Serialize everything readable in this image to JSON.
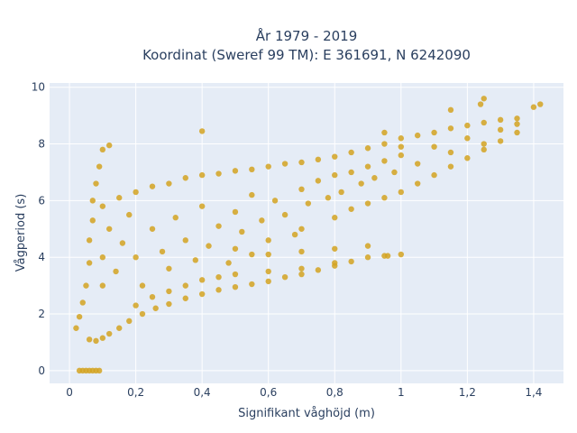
{
  "chart_data": {
    "type": "scatter",
    "title": [
      "År 1979 - 2019",
      "Koordinat (Sweref 99 TM): E 361691, N 6242090"
    ],
    "xlabel": "Signifikant våghöjd (m)",
    "ylabel": "Vågperiod (s)",
    "xlim": [
      -0.06,
      1.49
    ],
    "ylim": [
      -0.45,
      10.15
    ],
    "xticks": [
      0,
      0.2,
      0.4,
      0.6,
      0.8,
      1,
      1.2,
      1.4
    ],
    "xtick_labels": [
      "0",
      "0,2",
      "0,4",
      "0,6",
      "0,8",
      "1",
      "1,2",
      "1,4"
    ],
    "yticks": [
      0,
      2,
      4,
      6,
      8,
      10
    ],
    "ytick_labels": [
      "0",
      "2",
      "4",
      "6",
      "8",
      "10"
    ],
    "grid": true,
    "marker_color": "#d4a321",
    "plot_background": "#e5ecf6",
    "series": [
      {
        "points": [
          [
            0.02,
            1.5
          ],
          [
            0.03,
            1.9
          ],
          [
            0.04,
            2.4
          ],
          [
            0.05,
            3.0
          ],
          [
            0.06,
            3.8
          ],
          [
            0.06,
            4.6
          ],
          [
            0.07,
            5.3
          ],
          [
            0.07,
            6.0
          ],
          [
            0.08,
            6.6
          ],
          [
            0.09,
            7.2
          ],
          [
            0.06,
            1.1
          ],
          [
            0.08,
            1.05
          ],
          [
            0.1,
            1.15
          ],
          [
            0.12,
            1.3
          ],
          [
            0.15,
            1.5
          ],
          [
            0.18,
            1.75
          ],
          [
            0.22,
            2.0
          ],
          [
            0.26,
            2.2
          ],
          [
            0.3,
            2.35
          ],
          [
            0.35,
            2.55
          ],
          [
            0.4,
            2.7
          ],
          [
            0.45,
            2.85
          ],
          [
            0.5,
            2.95
          ],
          [
            0.55,
            3.05
          ],
          [
            0.6,
            3.15
          ],
          [
            0.65,
            3.3
          ],
          [
            0.7,
            3.4
          ],
          [
            0.75,
            3.55
          ],
          [
            0.8,
            3.7
          ],
          [
            0.85,
            3.85
          ],
          [
            0.9,
            4.0
          ],
          [
            0.95,
            4.05
          ],
          [
            1.0,
            4.1
          ],
          [
            0.1,
            5.8
          ],
          [
            0.15,
            6.1
          ],
          [
            0.2,
            6.3
          ],
          [
            0.25,
            6.5
          ],
          [
            0.3,
            6.6
          ],
          [
            0.35,
            6.8
          ],
          [
            0.4,
            6.9
          ],
          [
            0.45,
            6.95
          ],
          [
            0.5,
            7.05
          ],
          [
            0.55,
            7.1
          ],
          [
            0.6,
            7.2
          ],
          [
            0.65,
            7.3
          ],
          [
            0.7,
            7.35
          ],
          [
            0.75,
            7.45
          ],
          [
            0.8,
            7.55
          ],
          [
            0.85,
            7.7
          ],
          [
            0.9,
            7.85
          ],
          [
            0.95,
            8.0
          ],
          [
            1.0,
            8.2
          ],
          [
            1.05,
            8.3
          ],
          [
            1.1,
            8.4
          ],
          [
            1.15,
            8.55
          ],
          [
            1.2,
            8.65
          ],
          [
            1.25,
            8.75
          ],
          [
            1.3,
            8.85
          ],
          [
            1.35,
            8.9
          ],
          [
            1.4,
            9.3
          ],
          [
            1.42,
            9.4
          ],
          [
            1.25,
            9.6
          ],
          [
            1.24,
            9.4
          ],
          [
            1.15,
            9.2
          ],
          [
            0.12,
            7.95
          ],
          [
            0.1,
            7.8
          ],
          [
            0.4,
            8.45
          ],
          [
            0.95,
            8.4
          ],
          [
            1.0,
            7.9
          ],
          [
            0.5,
            4.3
          ],
          [
            0.6,
            4.6
          ],
          [
            0.7,
            5.0
          ],
          [
            0.8,
            5.4
          ],
          [
            0.85,
            5.7
          ],
          [
            0.9,
            5.9
          ],
          [
            0.95,
            6.1
          ],
          [
            1.0,
            6.3
          ],
          [
            1.05,
            6.6
          ],
          [
            1.1,
            6.9
          ],
          [
            1.15,
            7.2
          ],
          [
            1.2,
            7.5
          ],
          [
            1.25,
            7.8
          ],
          [
            1.3,
            8.1
          ],
          [
            1.35,
            8.4
          ],
          [
            0.55,
            4.1
          ],
          [
            0.7,
            4.2
          ],
          [
            0.8,
            4.3
          ],
          [
            0.9,
            4.4
          ],
          [
            0.96,
            4.05
          ],
          [
            0.03,
            0.0
          ],
          [
            0.04,
            0.0
          ],
          [
            0.05,
            0.0
          ],
          [
            0.06,
            0.0
          ],
          [
            0.07,
            0.0
          ],
          [
            0.08,
            0.0
          ],
          [
            0.09,
            0.0
          ],
          [
            0.1,
            3.0
          ],
          [
            0.1,
            4.0
          ],
          [
            0.12,
            5.0
          ],
          [
            0.14,
            3.5
          ],
          [
            0.16,
            4.5
          ],
          [
            0.18,
            5.5
          ],
          [
            0.2,
            4.0
          ],
          [
            0.22,
            3.0
          ],
          [
            0.25,
            5.0
          ],
          [
            0.28,
            4.2
          ],
          [
            0.3,
            3.6
          ],
          [
            0.32,
            5.4
          ],
          [
            0.35,
            4.6
          ],
          [
            0.38,
            3.9
          ],
          [
            0.4,
            5.8
          ],
          [
            0.42,
            4.4
          ],
          [
            0.45,
            5.1
          ],
          [
            0.48,
            3.8
          ],
          [
            0.5,
            5.6
          ],
          [
            0.52,
            4.9
          ],
          [
            0.55,
            6.2
          ],
          [
            0.58,
            5.3
          ],
          [
            0.6,
            4.1
          ],
          [
            0.62,
            6.0
          ],
          [
            0.65,
            5.5
          ],
          [
            0.68,
            4.8
          ],
          [
            0.7,
            6.4
          ],
          [
            0.72,
            5.9
          ],
          [
            0.75,
            6.7
          ],
          [
            0.78,
            6.1
          ],
          [
            0.8,
            6.9
          ],
          [
            0.82,
            6.3
          ],
          [
            0.85,
            7.0
          ],
          [
            0.88,
            6.6
          ],
          [
            0.9,
            7.2
          ],
          [
            0.92,
            6.8
          ],
          [
            0.95,
            7.4
          ],
          [
            0.98,
            7.0
          ],
          [
            1.0,
            7.6
          ],
          [
            1.05,
            7.3
          ],
          [
            1.1,
            7.9
          ],
          [
            1.15,
            7.7
          ],
          [
            1.2,
            8.2
          ],
          [
            1.25,
            8.0
          ],
          [
            1.3,
            8.5
          ],
          [
            1.35,
            8.7
          ],
          [
            0.2,
            2.3
          ],
          [
            0.25,
            2.6
          ],
          [
            0.3,
            2.8
          ],
          [
            0.35,
            3.0
          ],
          [
            0.4,
            3.2
          ],
          [
            0.45,
            3.3
          ],
          [
            0.5,
            3.4
          ],
          [
            0.6,
            3.5
          ],
          [
            0.7,
            3.6
          ],
          [
            0.8,
            3.8
          ]
        ]
      }
    ]
  }
}
